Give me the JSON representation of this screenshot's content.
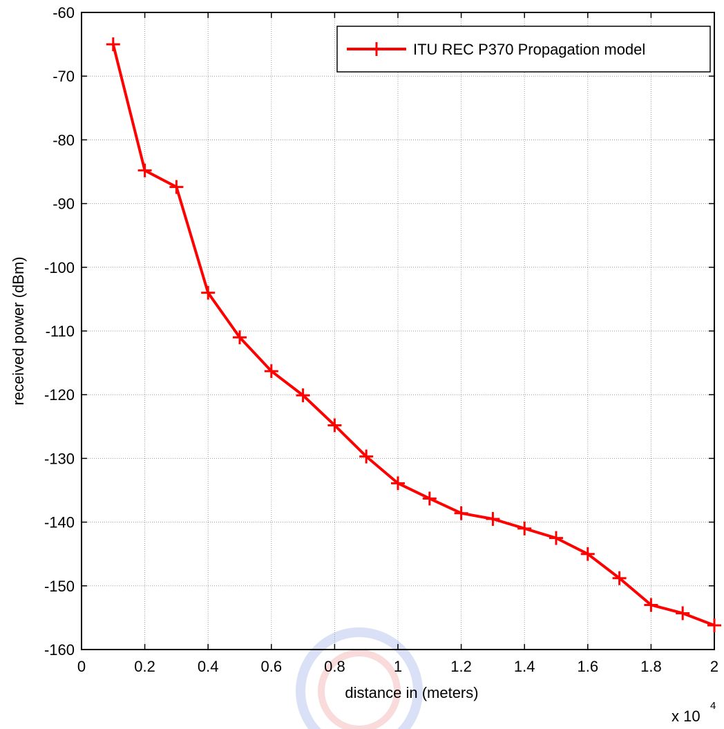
{
  "chart_data": {
    "type": "line",
    "title": "",
    "xlabel": "distance in (meters)",
    "ylabel": "received power (dBm)",
    "x_multiplier_label": "x 10",
    "x_multiplier_exponent": "4",
    "xlim": [
      0,
      2
    ],
    "ylim": [
      -160,
      -60
    ],
    "x_ticks": [
      0,
      0.2,
      0.4,
      0.6,
      0.8,
      1,
      1.2,
      1.4,
      1.6,
      1.8,
      2
    ],
    "x_tick_labels": [
      "0",
      "0.2",
      "0.4",
      "0.6",
      "0.8",
      "1",
      "1.2",
      "1.4",
      "1.6",
      "1.8",
      "2"
    ],
    "y_ticks": [
      -60,
      -70,
      -80,
      -90,
      -100,
      -110,
      -120,
      -130,
      -140,
      -150,
      -160
    ],
    "y_tick_labels": [
      "-60",
      "-70",
      "-80",
      "-90",
      "-100",
      "-110",
      "-120",
      "-130",
      "-140",
      "-150",
      "-160"
    ],
    "grid": true,
    "legend_position": "top-right",
    "series": [
      {
        "name": "ITU REC P370 Propagation model",
        "color": "#ff0000",
        "marker": "plus",
        "x": [
          0.1,
          0.2,
          0.3,
          0.4,
          0.5,
          0.6,
          0.7,
          0.8,
          0.9,
          1.0,
          1.1,
          1.2,
          1.3,
          1.4,
          1.5,
          1.6,
          1.7,
          1.8,
          1.9,
          2.0
        ],
        "y": [
          -65,
          -84.8,
          -87.4,
          -104,
          -111,
          -116.3,
          -120.1,
          -124.8,
          -129.7,
          -133.9,
          -136.3,
          -138.6,
          -139.5,
          -141,
          -142.5,
          -145,
          -148.8,
          -153,
          -154.3,
          -156.2
        ]
      }
    ]
  }
}
